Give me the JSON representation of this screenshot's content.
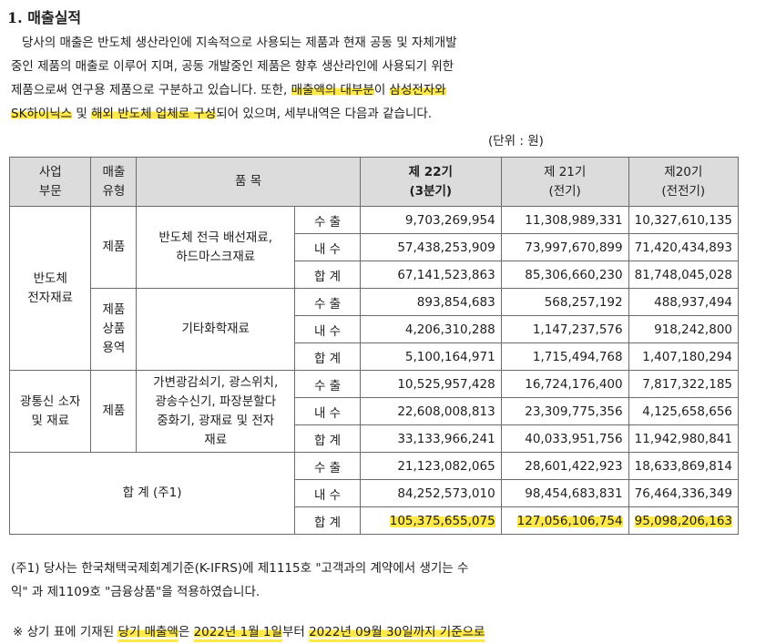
{
  "title": "1. 매출실적",
  "intro": {
    "l1": "당사의 매출은 반도체 생산라인에 지속적으로 사용되는 제품과 현재 공동 및 자체개발",
    "l2": "중인 제품의 매출로 이루어 지며, 공동 개발중인 제품은 향후 생산라인에 사용되기 위한",
    "l3a": "제품으로써 연구용 제품으로 구분하고 있습니다. 또한,",
    "l3b": "매출액의 대부분",
    "l3c": "이",
    "l3d": "삼성전자와",
    "l4a": "SK하이닉스",
    "l4b": "및",
    "l4c": "해외 반도체 업체로 구성",
    "l4d": "되어 있으며, 세부내역은 다음과 같습니다."
  },
  "unit_label": "(단위 : 원)",
  "headers": {
    "division": [
      "사업",
      "부문"
    ],
    "sales_type": [
      "매출",
      "유형"
    ],
    "item": "품 목",
    "p22": [
      "제 22기",
      "(3분기)"
    ],
    "p21": [
      "제 21기",
      "(전기)"
    ],
    "p20": [
      "제20기",
      "(전전기)"
    ]
  },
  "row_types": [
    "수 출",
    "내 수",
    "합 계"
  ],
  "groups": {
    "g1": {
      "division": [
        "반도체",
        "전자재료"
      ],
      "s1_type": [
        "제품"
      ],
      "s1_item": [
        "반도체 전극 배선재료,",
        "하드마스크재료"
      ],
      "s1_rows": [
        [
          "9,703,269,954",
          "11,308,989,331",
          "10,327,610,135"
        ],
        [
          "57,438,253,909",
          "73,997,670,899",
          "71,420,434,893"
        ],
        [
          "67,141,523,863",
          "85,306,660,230",
          "81,748,045,028"
        ]
      ],
      "s2_type": [
        "제품",
        "상품",
        "용역"
      ],
      "s2_item": [
        "기타화학재료"
      ],
      "s2_rows": [
        [
          "893,854,683",
          "568,257,192",
          "488,937,494"
        ],
        [
          "4,206,310,288",
          "1,147,237,576",
          "918,242,800"
        ],
        [
          "5,100,164,971",
          "1,715,494,768",
          "1,407,180,294"
        ]
      ]
    },
    "g2": {
      "division": [
        "광통신 소자",
        "및 재료"
      ],
      "type": [
        "제품"
      ],
      "item": [
        "가변광감쇠기, 광스위치,",
        "광송수신기, 파장분할다",
        "중화기, 광재료 및 전자",
        "재료"
      ],
      "rows": [
        [
          "10,525,957,428",
          "16,724,176,400",
          "7,817,322,185"
        ],
        [
          "22,608,008,813",
          "23,309,775,356",
          "4,125,658,656"
        ],
        [
          "33,133,966,241",
          "40,033,951,756",
          "11,942,980,841"
        ]
      ]
    },
    "total": {
      "label": "합 계 (주1)",
      "rows": [
        [
          "21,123,082,065",
          "28,601,422,923",
          "18,633,869,814"
        ],
        [
          "84,252,573,010",
          "98,454,683,831",
          "76,464,336,349"
        ],
        [
          "105,375,655,075",
          "127,056,106,754",
          "95,098,206,163"
        ]
      ]
    }
  },
  "note": {
    "l1": "(주1) 당사는 한국채택국제회계기준(K-IFRS)에 제1115호 \"고객과의 계약에서 생기는 수",
    "l2": "익\" 과 제1109호 \"금융상품\"을 적용하였습니다."
  },
  "bottom": {
    "a": "※ 상기 표에 기재된",
    "b": "당기 매출액",
    "c": "은",
    "d": "2022년 1월 1일",
    "e": "부터",
    "f": "2022년 09월 30일까지 기준으로"
  },
  "colors": {
    "highlight": "#ffe84a",
    "header_bg": "#dcdcdc",
    "border": "#6b6b6b"
  }
}
